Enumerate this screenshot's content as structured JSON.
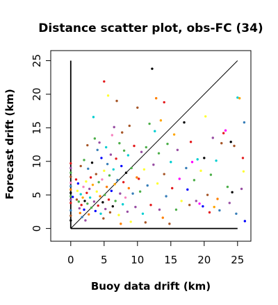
{
  "chart_data": {
    "type": "scatter",
    "title": "Distance scatter plot, obs-FC (34)",
    "xlabel": "Buoy data drift (km)",
    "ylabel": "Forecast drift (km)",
    "xlim": [
      -3,
      27
    ],
    "ylim": [
      -1.9,
      26.5
    ],
    "x_ticks": [
      0,
      5,
      10,
      15,
      20,
      25
    ],
    "y_ticks": [
      0,
      5,
      10,
      15,
      20,
      25
    ],
    "grid": false,
    "legend": "none",
    "reference_lines": [
      {
        "name": "identity",
        "x": [
          0,
          25
        ],
        "y": [
          0,
          25
        ]
      },
      {
        "name": "x-axis-segment",
        "x": [
          0,
          25
        ],
        "y": [
          0,
          0
        ]
      },
      {
        "name": "y-axis-segment",
        "x": [
          0,
          0
        ],
        "y": [
          0,
          25
        ]
      }
    ],
    "points": [
      {
        "x": 0.0,
        "y": 9.7,
        "color": "#e41a1c"
      },
      {
        "x": 0.0,
        "y": 9.0,
        "color": "#984ea3"
      },
      {
        "x": 0.0,
        "y": 8.3,
        "color": "#4daf4a"
      },
      {
        "x": 0.0,
        "y": 7.7,
        "color": "#a65628"
      },
      {
        "x": 0.0,
        "y": 6.8,
        "color": "#f781bf"
      },
      {
        "x": 0.0,
        "y": 6.3,
        "color": "#377eb8"
      },
      {
        "x": 0.0,
        "y": 5.8,
        "color": "#ff7f00"
      },
      {
        "x": 0.0,
        "y": 5.3,
        "color": "#000000"
      },
      {
        "x": 0.0,
        "y": 4.8,
        "color": "#4daf4a"
      },
      {
        "x": 0.0,
        "y": 4.3,
        "color": "#984ea3"
      },
      {
        "x": 0.0,
        "y": 3.8,
        "color": "#e41a1c"
      },
      {
        "x": 0.0,
        "y": 2.7,
        "color": "#377eb8"
      },
      {
        "x": 0.0,
        "y": 1.9,
        "color": "#a65628"
      },
      {
        "x": 0.0,
        "y": 1.2,
        "color": "#000000"
      },
      {
        "x": 0.3,
        "y": 4.7,
        "color": "#0000ff"
      },
      {
        "x": 0.8,
        "y": 7.3,
        "color": "#e41a1c"
      },
      {
        "x": 0.9,
        "y": 4.3,
        "color": "#a65628"
      },
      {
        "x": 1.0,
        "y": 5.6,
        "color": "#ffff33"
      },
      {
        "x": 1.1,
        "y": 6.7,
        "color": "#0000ff"
      },
      {
        "x": 1.2,
        "y": 4.0,
        "color": "#4daf4a"
      },
      {
        "x": 1.3,
        "y": 3.0,
        "color": "#984ea3"
      },
      {
        "x": 1.4,
        "y": 2.3,
        "color": "#ff7f00"
      },
      {
        "x": 1.5,
        "y": 9.3,
        "color": "#a65628"
      },
      {
        "x": 1.5,
        "y": 5.1,
        "color": "#00ced1"
      },
      {
        "x": 1.6,
        "y": 3.5,
        "color": "#e41a1c"
      },
      {
        "x": 1.7,
        "y": 1.7,
        "color": "#377eb8"
      },
      {
        "x": 1.8,
        "y": 4.6,
        "color": "#ffa500"
      },
      {
        "x": 1.9,
        "y": 6.2,
        "color": "#f781bf"
      },
      {
        "x": 2.0,
        "y": 10.2,
        "color": "#4daf4a"
      },
      {
        "x": 2.0,
        "y": 2.8,
        "color": "#0000ff"
      },
      {
        "x": 2.1,
        "y": 4.1,
        "color": "#000000"
      },
      {
        "x": 2.2,
        "y": 1.2,
        "color": "#984ea3"
      },
      {
        "x": 2.3,
        "y": 7.0,
        "color": "#ffff33"
      },
      {
        "x": 2.4,
        "y": 5.3,
        "color": "#e41a1c"
      },
      {
        "x": 2.5,
        "y": 12.4,
        "color": "#a65628"
      },
      {
        "x": 2.5,
        "y": 3.7,
        "color": "#4daf4a"
      },
      {
        "x": 2.6,
        "y": 8.9,
        "color": "#377eb8"
      },
      {
        "x": 2.7,
        "y": 2.1,
        "color": "#ff7f00"
      },
      {
        "x": 2.8,
        "y": 5.9,
        "color": "#984ea3"
      },
      {
        "x": 2.9,
        "y": 4.6,
        "color": "#00ced1"
      },
      {
        "x": 3.0,
        "y": 7.6,
        "color": "#e41a1c"
      },
      {
        "x": 3.1,
        "y": 3.1,
        "color": "#4daf4a"
      },
      {
        "x": 3.2,
        "y": 9.8,
        "color": "#000000"
      },
      {
        "x": 3.3,
        "y": 6.5,
        "color": "#ffa500"
      },
      {
        "x": 3.4,
        "y": 16.6,
        "color": "#00ced1"
      },
      {
        "x": 3.5,
        "y": 4.0,
        "color": "#984ea3"
      },
      {
        "x": 3.6,
        "y": 13.4,
        "color": "#4daf4a"
      },
      {
        "x": 3.7,
        "y": 2.6,
        "color": "#0000ff"
      },
      {
        "x": 3.8,
        "y": 8.1,
        "color": "#a65628"
      },
      {
        "x": 3.9,
        "y": 5.5,
        "color": "#ffff33"
      },
      {
        "x": 4.0,
        "y": 11.7,
        "color": "#377eb8"
      },
      {
        "x": 4.1,
        "y": 3.4,
        "color": "#e41a1c"
      },
      {
        "x": 4.2,
        "y": 6.9,
        "color": "#4daf4a"
      },
      {
        "x": 4.3,
        "y": 12.8,
        "color": "#984ea3"
      },
      {
        "x": 4.4,
        "y": 4.8,
        "color": "#ff7f00"
      },
      {
        "x": 4.5,
        "y": 2.2,
        "color": "#00ced1"
      },
      {
        "x": 4.6,
        "y": 10.5,
        "color": "#0000ff"
      },
      {
        "x": 4.7,
        "y": 7.3,
        "color": "#f781bf"
      },
      {
        "x": 4.8,
        "y": 3.9,
        "color": "#000000"
      },
      {
        "x": 4.9,
        "y": 1.5,
        "color": "#a65628"
      },
      {
        "x": 5.0,
        "y": 21.9,
        "color": "#e41a1c"
      },
      {
        "x": 5.0,
        "y": 8.6,
        "color": "#ffff33"
      },
      {
        "x": 5.1,
        "y": 5.0,
        "color": "#4daf4a"
      },
      {
        "x": 5.2,
        "y": 2.9,
        "color": "#984ea3"
      },
      {
        "x": 5.3,
        "y": 12.1,
        "color": "#00ced1"
      },
      {
        "x": 5.4,
        "y": 6.2,
        "color": "#ff7f00"
      },
      {
        "x": 5.5,
        "y": 9.6,
        "color": "#377eb8"
      },
      {
        "x": 5.6,
        "y": 19.8,
        "color": "#ffff33"
      },
      {
        "x": 5.7,
        "y": 4.3,
        "color": "#e41a1c"
      },
      {
        "x": 5.8,
        "y": 7.9,
        "color": "#4daf4a"
      },
      {
        "x": 5.9,
        "y": 2.4,
        "color": "#a65628"
      },
      {
        "x": 6.0,
        "y": 11.0,
        "color": "#984ea3"
      },
      {
        "x": 6.1,
        "y": 5.6,
        "color": "#0000ff"
      },
      {
        "x": 6.2,
        "y": 13.9,
        "color": "#f781bf"
      },
      {
        "x": 6.3,
        "y": 3.3,
        "color": "#000000"
      },
      {
        "x": 6.4,
        "y": 8.8,
        "color": "#00ced1"
      },
      {
        "x": 6.5,
        "y": 15.1,
        "color": "#984ea3"
      },
      {
        "x": 6.6,
        "y": 6.6,
        "color": "#ffa500"
      },
      {
        "x": 6.7,
        "y": 4.1,
        "color": "#4daf4a"
      },
      {
        "x": 6.8,
        "y": 10.4,
        "color": "#e41a1c"
      },
      {
        "x": 6.9,
        "y": 19.0,
        "color": "#a65628"
      },
      {
        "x": 7.0,
        "y": 7.2,
        "color": "#377eb8"
      },
      {
        "x": 7.2,
        "y": 2.0,
        "color": "#ffff33"
      },
      {
        "x": 7.3,
        "y": 12.7,
        "color": "#4daf4a"
      },
      {
        "x": 7.4,
        "y": 5.2,
        "color": "#984ea3"
      },
      {
        "x": 7.5,
        "y": 0.7,
        "color": "#ff7f00"
      },
      {
        "x": 7.6,
        "y": 9.3,
        "color": "#0000ff"
      },
      {
        "x": 7.7,
        "y": 14.3,
        "color": "#a65628"
      },
      {
        "x": 7.8,
        "y": 3.6,
        "color": "#00ced1"
      },
      {
        "x": 7.9,
        "y": 6.9,
        "color": "#e41a1c"
      },
      {
        "x": 8.0,
        "y": 11.6,
        "color": "#4daf4a"
      },
      {
        "x": 8.2,
        "y": 4.6,
        "color": "#f781bf"
      },
      {
        "x": 8.3,
        "y": 8.3,
        "color": "#000000"
      },
      {
        "x": 8.5,
        "y": 2.5,
        "color": "#984ea3"
      },
      {
        "x": 8.6,
        "y": 10.9,
        "color": "#00ced1"
      },
      {
        "x": 8.7,
        "y": 6.0,
        "color": "#ff7f00"
      },
      {
        "x": 8.8,
        "y": 15.3,
        "color": "#a65628"
      },
      {
        "x": 9.0,
        "y": 1.0,
        "color": "#ffff33"
      },
      {
        "x": 9.1,
        "y": 9.0,
        "color": "#4daf4a"
      },
      {
        "x": 9.3,
        "y": 5.2,
        "color": "#377eb8"
      },
      {
        "x": 9.5,
        "y": 12.3,
        "color": "#e41a1c"
      },
      {
        "x": 9.7,
        "y": 3.2,
        "color": "#984ea3"
      },
      {
        "x": 9.9,
        "y": 7.6,
        "color": "#ff7f00"
      },
      {
        "x": 10.0,
        "y": 18.0,
        "color": "#a65628"
      },
      {
        "x": 10.2,
        "y": 7.4,
        "color": "#e41a1c"
      },
      {
        "x": 10.4,
        "y": 5.5,
        "color": "#4daf4a"
      },
      {
        "x": 10.6,
        "y": 11.4,
        "color": "#984ea3"
      },
      {
        "x": 10.8,
        "y": 2.2,
        "color": "#00ced1"
      },
      {
        "x": 11.0,
        "y": 8.8,
        "color": "#ffff33"
      },
      {
        "x": 11.2,
        "y": 0.9,
        "color": "#a65628"
      },
      {
        "x": 11.3,
        "y": 12.1,
        "color": "#4daf4a"
      },
      {
        "x": 11.5,
        "y": 6.4,
        "color": "#377eb8"
      },
      {
        "x": 11.8,
        "y": 15.6,
        "color": "#4daf4a"
      },
      {
        "x": 12.0,
        "y": 3.5,
        "color": "#e41a1c"
      },
      {
        "x": 12.2,
        "y": 23.8,
        "color": "#000000"
      },
      {
        "x": 12.4,
        "y": 9.5,
        "color": "#984ea3"
      },
      {
        "x": 12.6,
        "y": 14.5,
        "color": "#00ced1"
      },
      {
        "x": 12.8,
        "y": 19.4,
        "color": "#ff7f00"
      },
      {
        "x": 13.0,
        "y": 6.7,
        "color": "#ffff33"
      },
      {
        "x": 13.2,
        "y": 11.2,
        "color": "#4daf4a"
      },
      {
        "x": 13.3,
        "y": 2.8,
        "color": "#984ea3"
      },
      {
        "x": 13.5,
        "y": 16.1,
        "color": "#ffa500"
      },
      {
        "x": 13.8,
        "y": 1.6,
        "color": "#ff7f00"
      },
      {
        "x": 14.0,
        "y": 18.8,
        "color": "#e41a1c"
      },
      {
        "x": 14.0,
        "y": 8.1,
        "color": "#a65628"
      },
      {
        "x": 14.3,
        "y": 4.8,
        "color": "#377eb8"
      },
      {
        "x": 14.5,
        "y": 12.6,
        "color": "#4daf4a"
      },
      {
        "x": 14.8,
        "y": 0.7,
        "color": "#a65628"
      },
      {
        "x": 15.0,
        "y": 9.9,
        "color": "#00ced1"
      },
      {
        "x": 15.2,
        "y": 6.0,
        "color": "#e41a1c"
      },
      {
        "x": 15.5,
        "y": 14.0,
        "color": "#ffa500"
      },
      {
        "x": 15.8,
        "y": 2.8,
        "color": "#4daf4a"
      },
      {
        "x": 16.0,
        "y": 11.7,
        "color": "#984ea3"
      },
      {
        "x": 16.3,
        "y": 7.4,
        "color": "#ff00ff"
      },
      {
        "x": 16.6,
        "y": 4.1,
        "color": "#ffff33"
      },
      {
        "x": 17.0,
        "y": 15.8,
        "color": "#000000"
      },
      {
        "x": 17.3,
        "y": 9.0,
        "color": "#377eb8"
      },
      {
        "x": 17.5,
        "y": 5.8,
        "color": "#0000ff"
      },
      {
        "x": 17.8,
        "y": 3.5,
        "color": "#a65628"
      },
      {
        "x": 18.0,
        "y": 12.9,
        "color": "#e41a1c"
      },
      {
        "x": 18.2,
        "y": 9.9,
        "color": "#ff00ff"
      },
      {
        "x": 18.5,
        "y": 7.2,
        "color": "#4daf4a"
      },
      {
        "x": 18.8,
        "y": 4.1,
        "color": "#984ea3"
      },
      {
        "x": 19.0,
        "y": 10.3,
        "color": "#00ced1"
      },
      {
        "x": 19.3,
        "y": 3.7,
        "color": "#ff00ff"
      },
      {
        "x": 19.5,
        "y": 8.6,
        "color": "#ffff33"
      },
      {
        "x": 19.8,
        "y": 3.3,
        "color": "#0000ff"
      },
      {
        "x": 20.0,
        "y": 10.5,
        "color": "#000000"
      },
      {
        "x": 20.2,
        "y": 16.7,
        "color": "#ffff33"
      },
      {
        "x": 20.5,
        "y": 5.0,
        "color": "#a65628"
      },
      {
        "x": 20.8,
        "y": 2.4,
        "color": "#e41a1c"
      },
      {
        "x": 21.0,
        "y": 8.0,
        "color": "#4daf4a"
      },
      {
        "x": 21.3,
        "y": 13.5,
        "color": "#984ea3"
      },
      {
        "x": 21.5,
        "y": 3.2,
        "color": "#ffa500"
      },
      {
        "x": 21.8,
        "y": 10.1,
        "color": "#00ced1"
      },
      {
        "x": 22.0,
        "y": 4.4,
        "color": "#ff7f00"
      },
      {
        "x": 22.3,
        "y": 2.7,
        "color": "#377eb8"
      },
      {
        "x": 22.6,
        "y": 12.7,
        "color": "#a65628"
      },
      {
        "x": 22.9,
        "y": 14.2,
        "color": "#e41a1c"
      },
      {
        "x": 23.2,
        "y": 14.6,
        "color": "#ff00ff"
      },
      {
        "x": 23.5,
        "y": 6.2,
        "color": "#4daf4a"
      },
      {
        "x": 23.8,
        "y": 3.8,
        "color": "#984ea3"
      },
      {
        "x": 24.0,
        "y": 12.9,
        "color": "#000000"
      },
      {
        "x": 24.2,
        "y": 5.4,
        "color": "#000000"
      },
      {
        "x": 24.5,
        "y": 12.3,
        "color": "#a65628"
      },
      {
        "x": 24.8,
        "y": 2.2,
        "color": "#377eb8"
      },
      {
        "x": 25.0,
        "y": 19.5,
        "color": "#00ced1"
      },
      {
        "x": 25.3,
        "y": 19.4,
        "color": "#ffa500"
      },
      {
        "x": 25.6,
        "y": 5.9,
        "color": "#984ea3"
      },
      {
        "x": 25.8,
        "y": 10.5,
        "color": "#e41a1c"
      },
      {
        "x": 25.9,
        "y": 8.5,
        "color": "#ffff33"
      },
      {
        "x": 26.0,
        "y": 15.8,
        "color": "#377eb8"
      },
      {
        "x": 26.1,
        "y": 1.1,
        "color": "#0000ff"
      }
    ]
  }
}
